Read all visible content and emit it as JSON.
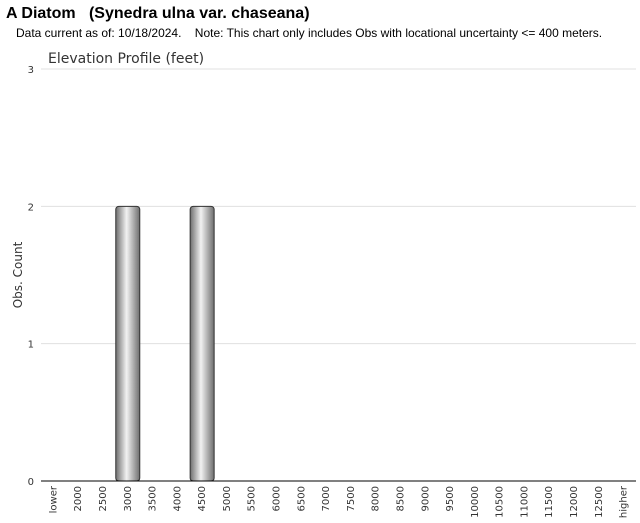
{
  "header": {
    "title": "A Diatom   (Synedra ulna var. chaseana)",
    "note": "Data current as of: 10/18/2024.    Note: This chart only includes Obs with locational uncertainty <= 400 meters."
  },
  "colors": {
    "bar_light": "#f2f2f2",
    "bar_dark": "#6e6e6e",
    "bar_stroke": "#333333",
    "grid": "#e0e0e0",
    "axis": "#000000",
    "text": "#333333"
  },
  "chart_data": {
    "type": "bar",
    "title": "Elevation Profile (feet)",
    "xlabel": "",
    "ylabel": "Obs. Count",
    "ylim": [
      0,
      3
    ],
    "yticks": [
      0,
      1,
      2,
      3
    ],
    "grid": true,
    "categories": [
      "lower",
      "2000",
      "2500",
      "3000",
      "3500",
      "4000",
      "4500",
      "5000",
      "5500",
      "6000",
      "6500",
      "7000",
      "7500",
      "8000",
      "8500",
      "9000",
      "9500",
      "10000",
      "10500",
      "11000",
      "11500",
      "12000",
      "12500",
      "higher"
    ],
    "values": [
      0,
      0,
      0,
      2,
      0,
      0,
      2,
      0,
      0,
      0,
      0,
      0,
      0,
      0,
      0,
      0,
      0,
      0,
      0,
      0,
      0,
      0,
      0,
      0
    ]
  }
}
